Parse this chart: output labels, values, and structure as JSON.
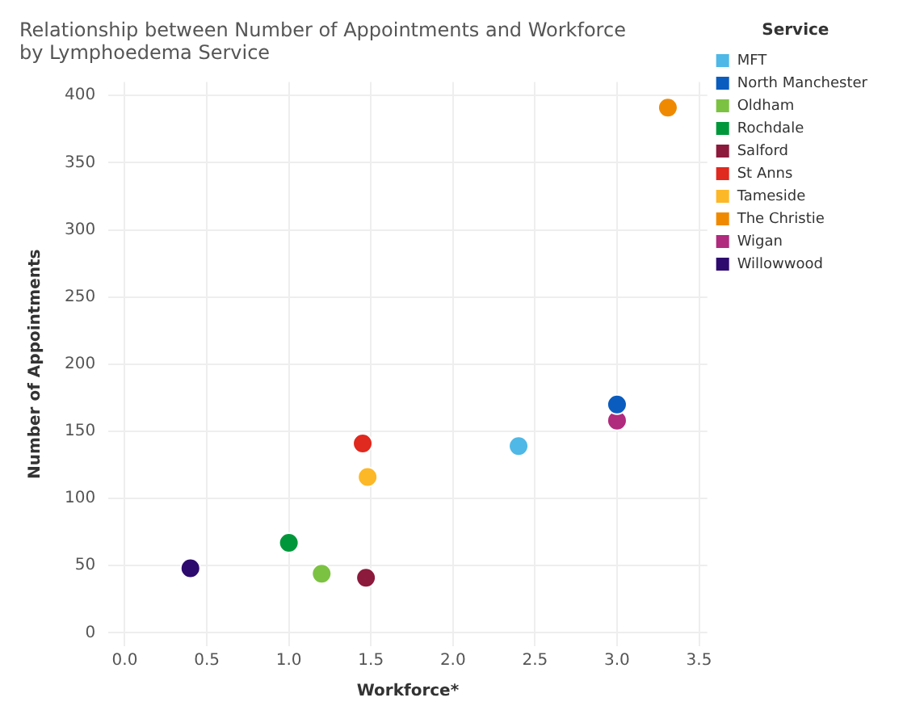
{
  "chart_data": {
    "type": "scatter",
    "title": [
      "Relationship between Number of Appointments and Workforce",
      "by Lymphoedema Service"
    ],
    "xlabel": "Workforce*",
    "ylabel": "Number of Appointments",
    "legend_title": "Service",
    "xlim": [
      -0.1,
      3.55
    ],
    "xticks": [
      {
        "value": 0,
        "label": "0.0"
      },
      {
        "value": 0.5,
        "label": "0.5"
      },
      {
        "value": 1,
        "label": "1.0"
      },
      {
        "value": 1.5,
        "label": "1.5"
      },
      {
        "value": 2,
        "label": "2.0"
      },
      {
        "value": 2.5,
        "label": "2.5"
      },
      {
        "value": 3,
        "label": "3.0"
      },
      {
        "value": 3.5,
        "label": "3.5"
      }
    ],
    "ylim": [
      -10,
      410
    ],
    "yticks": [
      0,
      50,
      100,
      150,
      200,
      250,
      300,
      350,
      400
    ],
    "grid": true,
    "legend": "top right",
    "marker": "circle",
    "series": [
      {
        "name": "MFT",
        "color": "#4fb8e6",
        "x": [
          2.4
        ],
        "values": [
          139
        ]
      },
      {
        "name": "North Manchester",
        "color": "#0a5cbf",
        "x": [
          3.0
        ],
        "values": [
          170
        ]
      },
      {
        "name": "Oldham",
        "color": "#7cc242",
        "x": [
          1.2
        ],
        "values": [
          44
        ]
      },
      {
        "name": "Rochdale",
        "color": "#00973a",
        "x": [
          1.0
        ],
        "values": [
          67
        ]
      },
      {
        "name": "Salford",
        "color": "#8c1a3c",
        "x": [
          1.47
        ],
        "values": [
          41
        ]
      },
      {
        "name": "St Anns",
        "color": "#e0291f",
        "x": [
          1.45
        ],
        "values": [
          141
        ]
      },
      {
        "name": "Tameside",
        "color": "#fdb827",
        "x": [
          1.48
        ],
        "values": [
          116
        ]
      },
      {
        "name": "The Christie",
        "color": "#ef8a00",
        "x": [
          3.31
        ],
        "values": [
          391
        ]
      },
      {
        "name": "Wigan",
        "color": "#b02a7d",
        "x": [
          3.0
        ],
        "values": [
          158
        ]
      },
      {
        "name": "Willowwood",
        "color": "#2d0a6e",
        "x": [
          0.4
        ],
        "values": [
          48
        ]
      }
    ]
  }
}
